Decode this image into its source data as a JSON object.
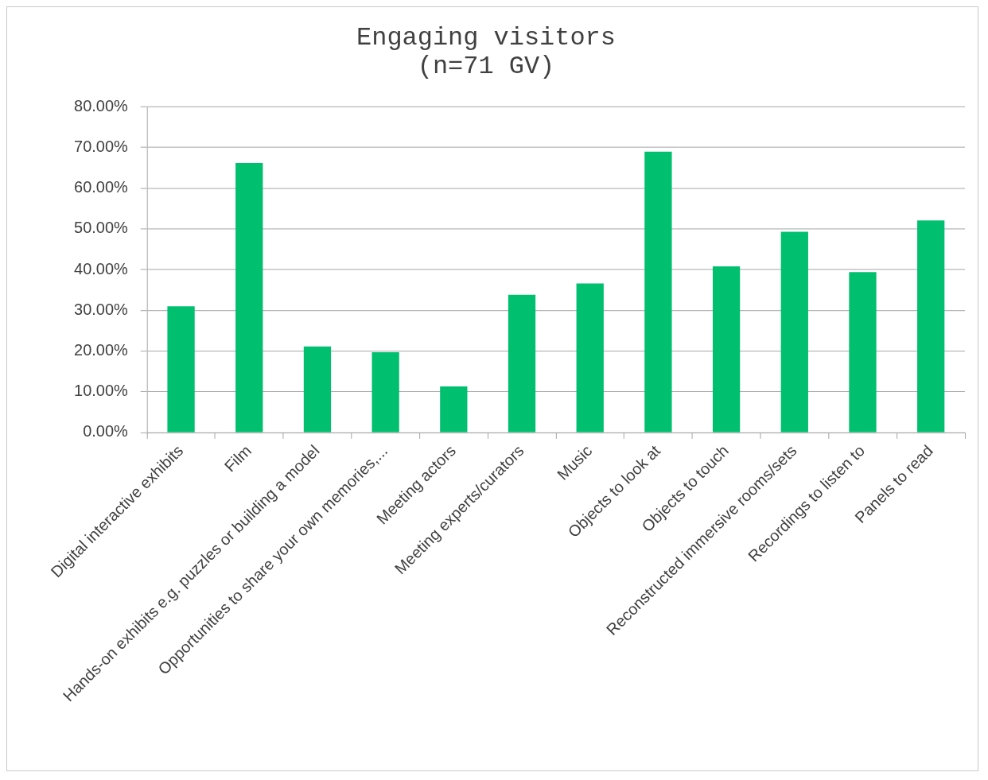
{
  "chart_data": {
    "type": "bar",
    "title": "Engaging visitors",
    "subtitle": "(n=71 GV)",
    "categories": [
      "Digital interactive exhibits",
      "Film",
      "Hands-on exhibits e.g. puzzles or building a model",
      "Opportunities to share your own memories,...",
      "Meeting actors",
      "Meeting experts/curators",
      "Music",
      "Objects to look at",
      "Objects to touch",
      "Reconstructed immersive rooms/sets",
      "Recordings to listen to",
      "Panels to read"
    ],
    "values": [
      31.0,
      66.2,
      21.1,
      19.7,
      11.3,
      33.8,
      36.6,
      69.0,
      40.8,
      49.3,
      39.4,
      52.1
    ],
    "color": "#00bf6e",
    "ylim": [
      0,
      80
    ],
    "yticks": [
      {
        "value": 0,
        "label": "0.00%"
      },
      {
        "value": 10,
        "label": "10.00%"
      },
      {
        "value": 20,
        "label": "20.00%"
      },
      {
        "value": 30,
        "label": "30.00%"
      },
      {
        "value": 40,
        "label": "40.00%"
      },
      {
        "value": 50,
        "label": "50.00%"
      },
      {
        "value": 60,
        "label": "60.00%"
      },
      {
        "value": 70,
        "label": "70.00%"
      },
      {
        "value": 80,
        "label": "80.00%"
      }
    ],
    "grid": "y"
  }
}
